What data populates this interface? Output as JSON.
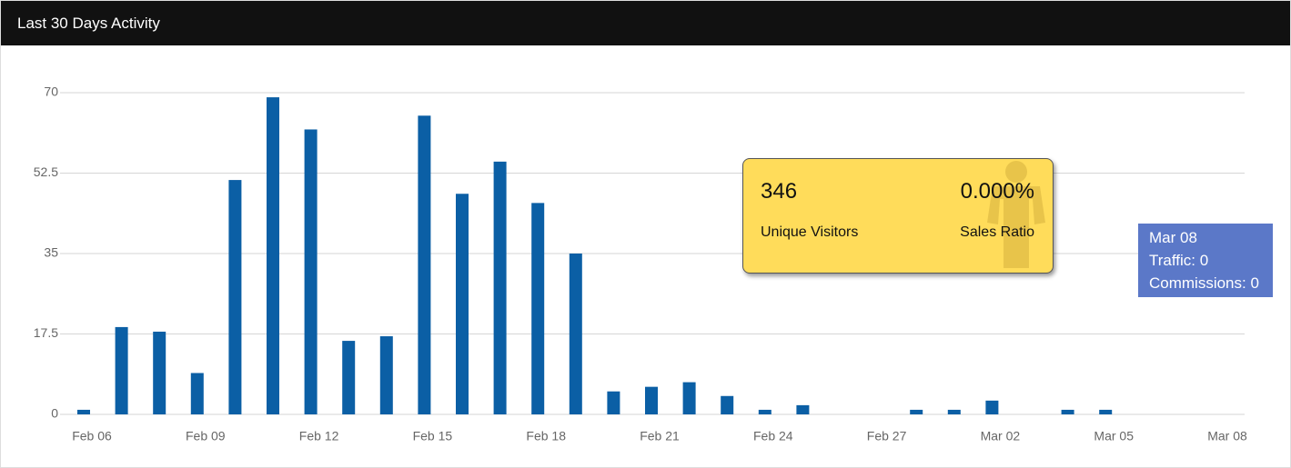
{
  "header": {
    "title": "Last 30 Days Activity"
  },
  "chart_data": {
    "type": "bar",
    "categories": [
      "Feb 06",
      null,
      null,
      "Feb 09",
      null,
      null,
      "Feb 12",
      null,
      null,
      "Feb 15",
      null,
      null,
      "Feb 18",
      null,
      null,
      "Feb 21",
      null,
      null,
      "Feb 24",
      null,
      null,
      "Feb 27",
      null,
      null,
      "Mar 02",
      null,
      null,
      "Mar 05",
      null,
      null,
      "Mar 08"
    ],
    "values": [
      1,
      19,
      18,
      9,
      51,
      69,
      62,
      16,
      17,
      65,
      48,
      55,
      46,
      35,
      5,
      6,
      7,
      4,
      1,
      2,
      0,
      0,
      1,
      1,
      3,
      0,
      1,
      1,
      0,
      0,
      0
    ],
    "color": "#0b5fa5",
    "ylim": [
      0,
      70
    ],
    "yticks": [
      0,
      17.5,
      35,
      52.5,
      70
    ],
    "grid": true
  },
  "stats": {
    "visitors": "346",
    "visitors_label": "Unique Visitors",
    "ratio": "0.000%",
    "ratio_label": "Sales Ratio"
  },
  "tooltip": {
    "date": "Mar 08",
    "lines": [
      "Traffic: 0",
      "Commissions: 0"
    ]
  }
}
